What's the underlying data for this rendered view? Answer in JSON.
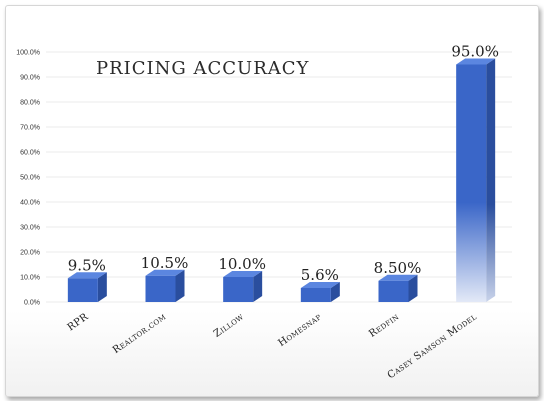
{
  "chart_data": {
    "type": "bar",
    "title": "PRICING ACCURACY",
    "categories": [
      "RPR",
      "Realtor.com",
      "Zillow",
      "Homesnap",
      "Redfin",
      "Casey Samson Model"
    ],
    "values": [
      9.5,
      10.5,
      10.0,
      5.6,
      8.5,
      95.0
    ],
    "data_labels": [
      "9.5%",
      "10.5%",
      "10.0%",
      "5.6%",
      "8.50%",
      "95.0%"
    ],
    "ylim": [
      0,
      100
    ],
    "y_ticks": [
      "0.0%",
      "10.0%",
      "20.0%",
      "30.0%",
      "40.0%",
      "50.0%",
      "60.0%",
      "70.0%",
      "80.0%",
      "90.0%",
      "100.0%"
    ],
    "grid": true,
    "legend": "none",
    "bar_color": "#3a66c8",
    "bar_top_color": "#5b86e0",
    "bar_side_color": "#2a4e9e"
  }
}
